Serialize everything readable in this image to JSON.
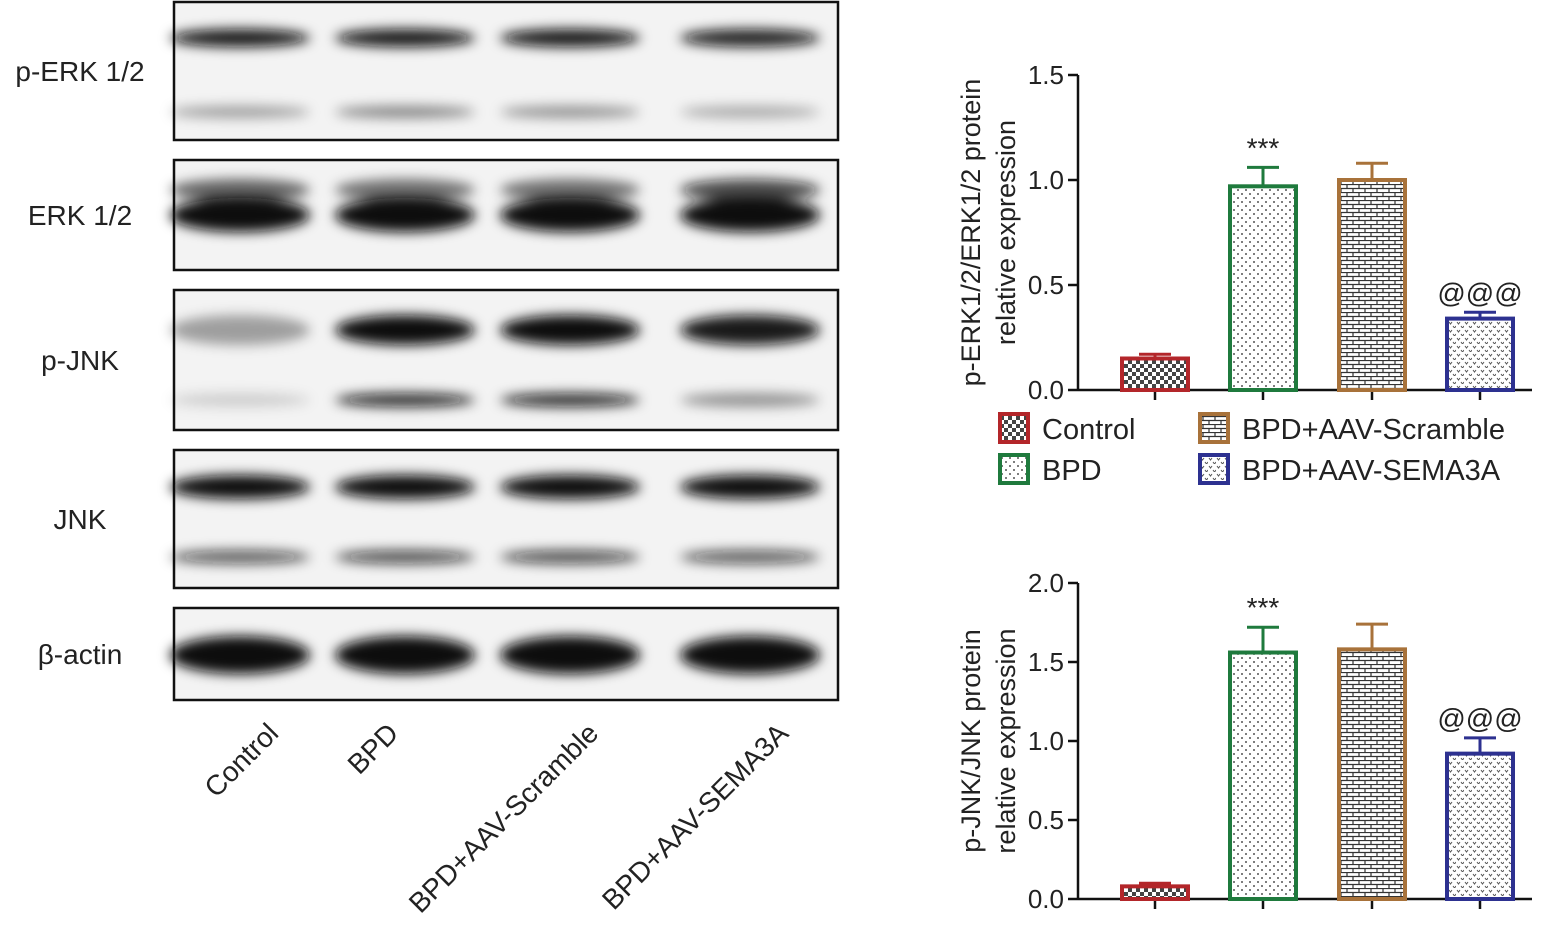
{
  "blot": {
    "rows": [
      "p-ERK 1/2",
      "ERK 1/2",
      "p-JNK",
      "JNK",
      "β-actin"
    ],
    "lanes": [
      "Control",
      "BPD",
      "BPD+AAV-Scramble",
      "BPD+AAV-SEMA3A"
    ]
  },
  "chart_data": [
    {
      "type": "bar",
      "ylabel": [
        "p-ERK1/2/ERK1/2 protein",
        "relative expression"
      ],
      "categories": [
        "Control",
        "BPD",
        "BPD+AAV-Scramble",
        "BPD+AAV-SEMA3A"
      ],
      "values": [
        0.15,
        0.97,
        1.0,
        0.34
      ],
      "errors": [
        0.02,
        0.09,
        0.08,
        0.03
      ],
      "value_annotations": [
        null,
        "***",
        null,
        "@@@"
      ],
      "colors": [
        "#b3262a",
        "#1f7a3d",
        "#a8723a",
        "#2d3190"
      ],
      "ylim": [
        0,
        1.5
      ],
      "yticks": [
        {
          "value": 0,
          "label": "0.0"
        },
        0.5,
        {
          "value": 1,
          "label": "1.0"
        },
        1.5
      ],
      "legend": true
    },
    {
      "type": "bar",
      "ylabel": [
        "p-JNK/JNK protein",
        "relative expression"
      ],
      "categories": [
        "Control",
        "BPD",
        "BPD+AAV-Scramble",
        "BPD+AAV-SEMA3A"
      ],
      "values": [
        0.08,
        1.56,
        1.58,
        0.92
      ],
      "errors": [
        0.02,
        0.16,
        0.16,
        0.1
      ],
      "value_annotations": [
        null,
        "***",
        null,
        "@@@"
      ],
      "colors": [
        "#b3262a",
        "#1f7a3d",
        "#a8723a",
        "#2d3190"
      ],
      "ylim": [
        0,
        2
      ],
      "yticks": [
        {
          "value": 0,
          "label": "0.0"
        },
        0.5,
        {
          "value": 1,
          "label": "1.0"
        },
        1.5,
        {
          "value": 2,
          "label": "2.0"
        }
      ],
      "legend": false
    }
  ]
}
